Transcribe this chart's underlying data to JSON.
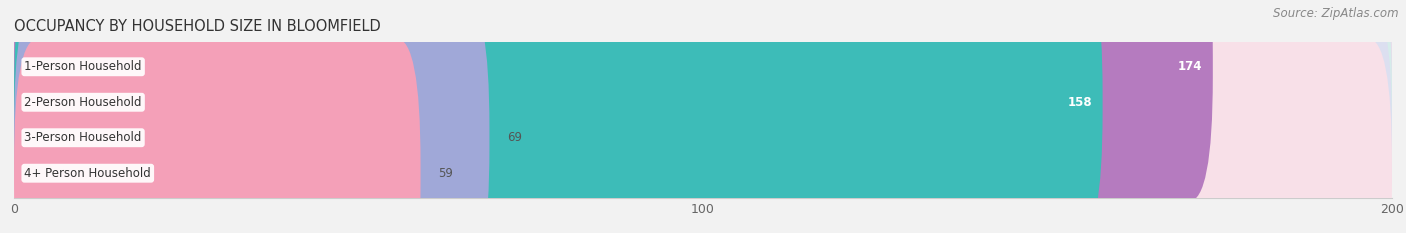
{
  "title": "OCCUPANCY BY HOUSEHOLD SIZE IN BLOOMFIELD",
  "source": "Source: ZipAtlas.com",
  "categories": [
    "1-Person Household",
    "2-Person Household",
    "3-Person Household",
    "4+ Person Household"
  ],
  "values": [
    174,
    158,
    69,
    59
  ],
  "bar_colors": [
    "#b57bbf",
    "#3dbcb8",
    "#a0a8d8",
    "#f4a0b8"
  ],
  "bar_bg_colors": [
    "#e5dcea",
    "#d5ecea",
    "#dcdff0",
    "#f8e0e8"
  ],
  "label_colors": [
    "white",
    "white",
    "#555555",
    "#555555"
  ],
  "xlim": [
    0,
    200
  ],
  "xticks": [
    0,
    100,
    200
  ],
  "bar_height": 0.62,
  "title_fontsize": 10.5,
  "source_fontsize": 8.5,
  "label_fontsize": 8.5,
  "value_fontsize": 8.5,
  "tick_fontsize": 9,
  "background_color": "#f2f2f2",
  "bar_bg_color_full": "#ebebeb"
}
